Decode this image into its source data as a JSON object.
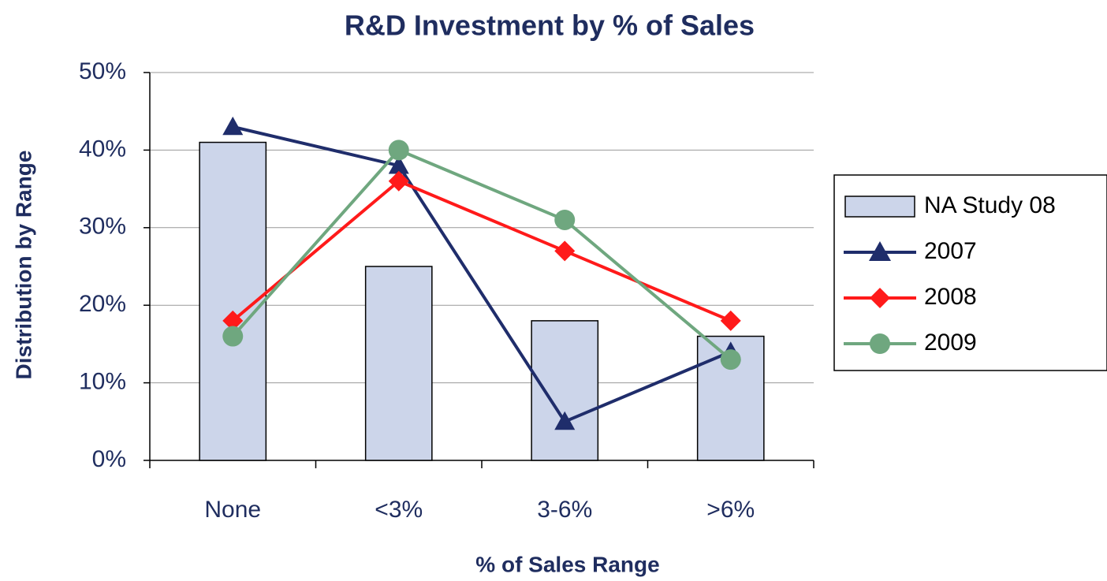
{
  "chart_data": {
    "type": "combo",
    "title": "R&D Investment by % of Sales",
    "x_label": "% of Sales Range",
    "y_label": "Distribution by Range",
    "categories": [
      "None",
      "<3%",
      "3-6%",
      ">6%"
    ],
    "series": [
      {
        "name": "NA Study 08",
        "type": "bar",
        "color": "#ccd5ea",
        "values": [
          41,
          25,
          18,
          16
        ]
      },
      {
        "name": "2007",
        "type": "line",
        "marker": "triangle",
        "color": "#1f2d6b",
        "values": [
          43,
          38,
          5,
          14
        ]
      },
      {
        "name": "2008",
        "type": "line",
        "marker": "diamond",
        "color": "#ff1a1a",
        "values": [
          18,
          36,
          27,
          18
        ]
      },
      {
        "name": "2009",
        "type": "line",
        "marker": "circle",
        "color": "#6fa77f",
        "values": [
          16,
          40,
          31,
          13
        ]
      }
    ],
    "ylim": [
      0,
      50
    ],
    "yticks": [
      {
        "value": 0,
        "label": "0%"
      },
      {
        "value": 10,
        "label": "10%"
      },
      {
        "value": 20,
        "label": "20%"
      },
      {
        "value": 30,
        "label": "30%"
      },
      {
        "value": 40,
        "label": "40%"
      },
      {
        "value": 50,
        "label": "50%"
      }
    ],
    "grid": true,
    "legend": "right"
  }
}
